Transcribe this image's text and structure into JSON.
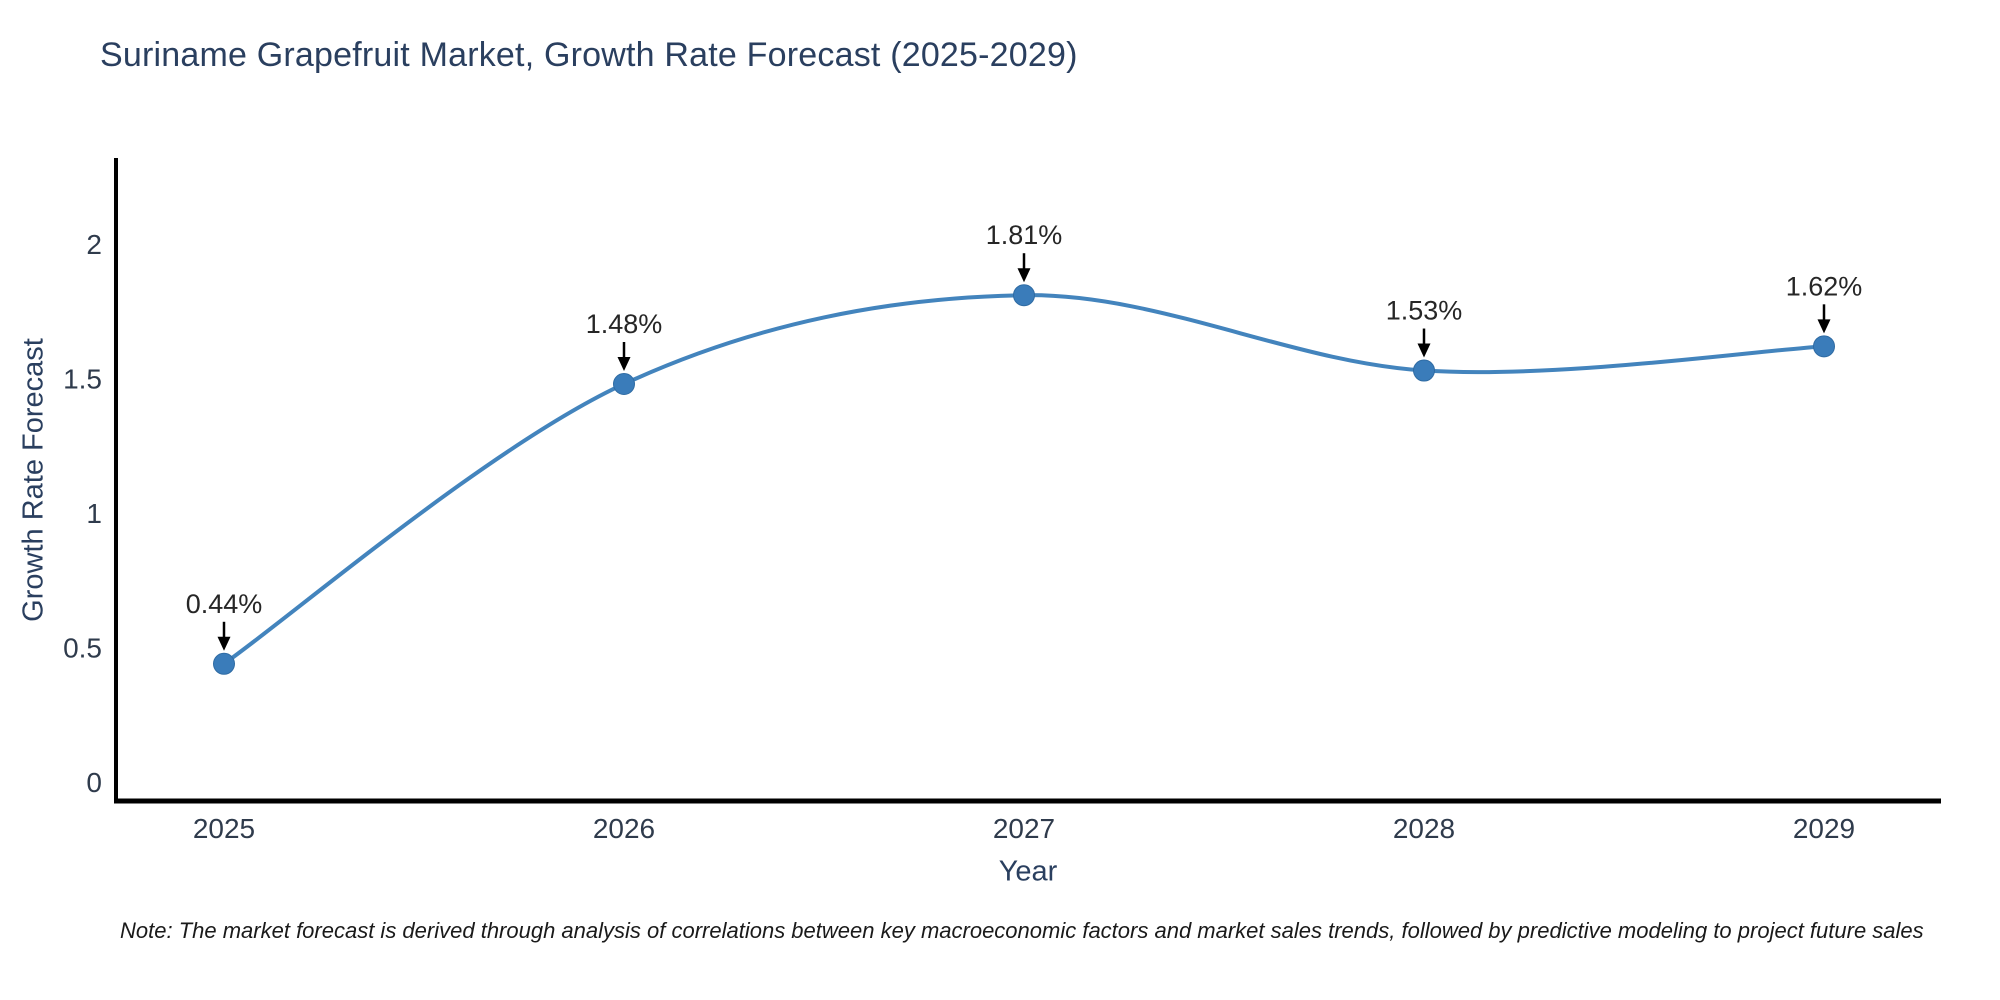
{
  "note": "Note: The market forecast is derived through analysis of correlations between key macroeconomic factors and market sales trends, followed by predictive modeling to project future sales",
  "chart_data": {
    "type": "line",
    "title": "Suriname Grapefruit Market, Growth Rate Forecast (2025-2029)",
    "xlabel": "Year",
    "ylabel": "Growth Rate Forecast",
    "x": [
      2025,
      2026,
      2027,
      2028,
      2029
    ],
    "values": [
      0.44,
      1.48,
      1.81,
      1.53,
      1.62
    ],
    "point_labels": [
      "0.44%",
      "1.48%",
      "1.81%",
      "1.53%",
      "1.62%"
    ],
    "yticks": [
      0,
      0.5,
      1,
      1.5,
      2
    ],
    "ylim": [
      -0.07,
      2.32
    ],
    "grid": false,
    "smooth": true,
    "markers": true,
    "legend": "none",
    "colors": {
      "line": "#4384bd",
      "marker_fill": "#3a7cba",
      "marker_edge": "#2f6ba3",
      "axis": "#000000",
      "annotation_text": "#262626",
      "annotation_arrow": "#000000",
      "title_text": "#2a3f5f",
      "tick_text": "#2f3b4c",
      "background": "#ffffff"
    }
  }
}
